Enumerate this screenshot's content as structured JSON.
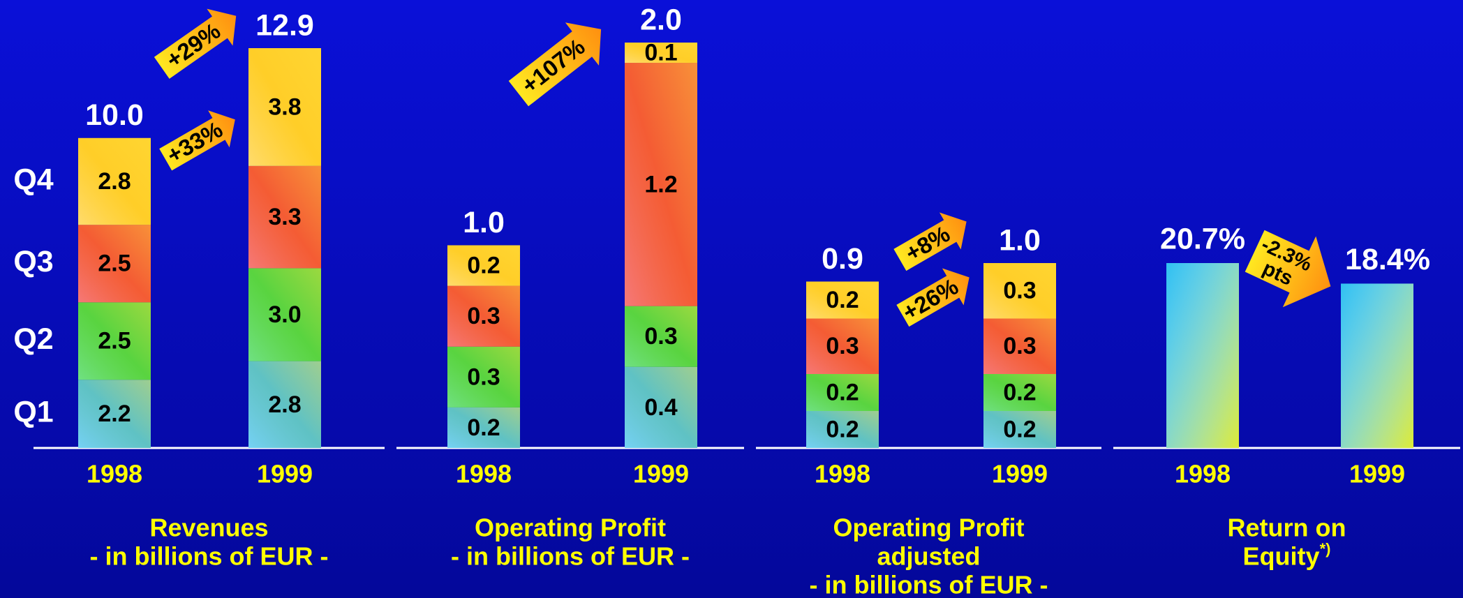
{
  "chart_data": [
    {
      "type": "bar",
      "stacked": true,
      "categories": [
        "1998",
        "1999"
      ],
      "series": [
        {
          "name": "Q1",
          "color": "#2ab8f0",
          "values": [
            2.2,
            2.8
          ],
          "value_labels": [
            "2.2",
            "2.8"
          ]
        },
        {
          "name": "Q2",
          "color": "#22d040",
          "values": [
            2.5,
            3.0
          ],
          "value_labels": [
            "2.5",
            "3.0"
          ]
        },
        {
          "name": "Q3",
          "color": "#f03030",
          "values": [
            2.5,
            3.3
          ],
          "value_labels": [
            "2.5",
            "3.3"
          ]
        },
        {
          "name": "Q4",
          "color": "#ffc820",
          "values": [
            2.8,
            3.8
          ],
          "value_labels": [
            "2.8",
            "3.8"
          ]
        }
      ],
      "totals": [
        10.0,
        12.9
      ],
      "total_labels": [
        "10.0",
        "12.9"
      ],
      "title_lines": [
        "Revenues",
        "- in billions of EUR -"
      ],
      "annotations": [
        {
          "lines": [
            "+29%"
          ]
        },
        {
          "lines": [
            "+33%"
          ]
        }
      ]
    },
    {
      "type": "bar",
      "stacked": true,
      "categories": [
        "1998",
        "1999"
      ],
      "series": [
        {
          "color": "#2ab8f0",
          "values": [
            0.2,
            0.4
          ],
          "value_labels": [
            "0.2",
            "0.4"
          ]
        },
        {
          "color": "#22d040",
          "values": [
            0.3,
            0.3
          ],
          "value_labels": [
            "0.3",
            "0.3"
          ]
        },
        {
          "color": "#f03030",
          "values": [
            0.3,
            1.2
          ],
          "value_labels": [
            "0.3",
            "1.2"
          ]
        },
        {
          "color": "#ffc820",
          "values": [
            0.2,
            0.1
          ],
          "value_labels": [
            "0.2",
            "0.1"
          ]
        }
      ],
      "totals": [
        1.0,
        2.0
      ],
      "total_labels": [
        "1.0",
        "2.0"
      ],
      "title_lines": [
        "Operating Profit",
        "- in billions of EUR -"
      ],
      "annotations": [
        {
          "lines": [
            "+107%"
          ]
        }
      ]
    },
    {
      "type": "bar",
      "stacked": true,
      "categories": [
        "1998",
        "1999"
      ],
      "series": [
        {
          "color": "#2ab8f0",
          "values": [
            0.2,
            0.2
          ],
          "value_labels": [
            "0.2",
            "0.2"
          ]
        },
        {
          "color": "#22d040",
          "values": [
            0.2,
            0.2
          ],
          "value_labels": [
            "0.2",
            "0.2"
          ]
        },
        {
          "color": "#f03030",
          "values": [
            0.3,
            0.3
          ],
          "value_labels": [
            "0.3",
            "0.3"
          ]
        },
        {
          "color": "#ffc820",
          "values": [
            0.2,
            0.3
          ],
          "value_labels": [
            "0.2",
            "0.3"
          ]
        }
      ],
      "totals": [
        0.9,
        1.0
      ],
      "total_labels": [
        "0.9",
        "1.0"
      ],
      "title_lines": [
        "Operating Profit",
        "adjusted",
        "- in billions of EUR -"
      ],
      "annotations": [
        {
          "lines": [
            "+8%"
          ]
        },
        {
          "lines": [
            "+26%"
          ]
        }
      ]
    },
    {
      "type": "bar",
      "stacked": false,
      "categories": [
        "1998",
        "1999"
      ],
      "color": "#30c0f0",
      "values": [
        20.7,
        18.4
      ],
      "value_labels": [
        "20.7%",
        "18.4%"
      ],
      "title_lines": [
        "Return on",
        "Equity"
      ],
      "title_note": "*)",
      "annotations": [
        {
          "lines": [
            "-2.3%",
            "pts"
          ]
        }
      ]
    }
  ]
}
